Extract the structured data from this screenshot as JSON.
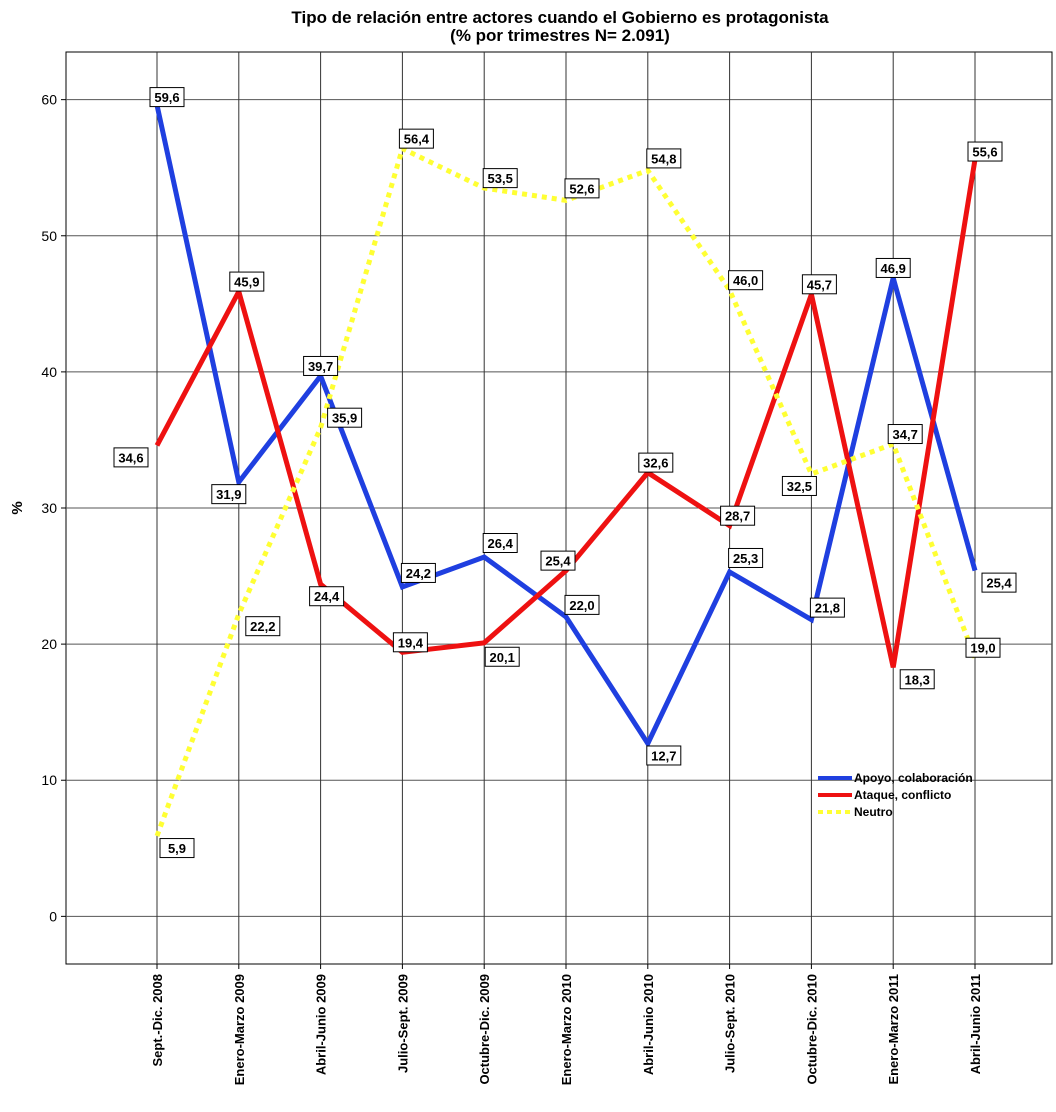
{
  "chart_data": {
    "type": "line",
    "title": "Tipo de relación entre actores cuando el Gobierno es protagonista",
    "subtitle": "(% por trimestres  N= 2.091)",
    "xlabel": "",
    "ylabel": "%",
    "ylim": [
      -3.5,
      63.5
    ],
    "yticks": [
      0,
      10,
      20,
      30,
      40,
      50,
      60
    ],
    "grid": true,
    "legend_position": "bottom-right",
    "categories": [
      "Sept.-Dic. 2008",
      "Enero-Marzo 2009",
      "Abril-Junio 2009",
      "Julio-Sept. 2009",
      "Octubre-Dic. 2009",
      "Enero-Marzo 2010",
      "Abril-Junio 2010",
      "Julio-Sept. 2010",
      "Octubre-Dic. 2010",
      "Enero-Marzo 2011",
      "Abril-Junio 2011"
    ],
    "series": [
      {
        "name": "Apoyo, colaboración",
        "color": "#1f3fe0",
        "style": "solid",
        "values": [
          59.6,
          31.9,
          39.7,
          24.2,
          26.4,
          22.0,
          12.7,
          25.3,
          21.8,
          46.9,
          25.4
        ],
        "labels": [
          "59,6",
          "31,9",
          "39,7",
          "24,2",
          "26,4",
          "22,0",
          "12,7",
          "25,3",
          "21,8",
          "46,9",
          "25,4"
        ]
      },
      {
        "name": "Ataque, conflicto",
        "color": "#ee1111",
        "style": "solid",
        "values": [
          34.6,
          45.9,
          24.4,
          19.4,
          20.1,
          25.4,
          32.6,
          28.7,
          45.7,
          18.3,
          55.6
        ],
        "labels": [
          "34,6",
          "45,9",
          "24,4",
          "19,4",
          "20,1",
          "25,4",
          "32,6",
          "28,7",
          "45,7",
          "18,3",
          "55,6"
        ]
      },
      {
        "name": "Neutro",
        "color": "#ffff33",
        "style": "dotted",
        "values": [
          5.9,
          22.2,
          35.9,
          56.4,
          53.5,
          52.6,
          54.8,
          46.0,
          32.5,
          34.7,
          19.0
        ],
        "labels": [
          "5,9",
          "22,2",
          "35,9",
          "56,4",
          "53,5",
          "52,6",
          "54,8",
          "46,0",
          "32,5",
          "34,7",
          "19,0"
        ]
      }
    ]
  }
}
